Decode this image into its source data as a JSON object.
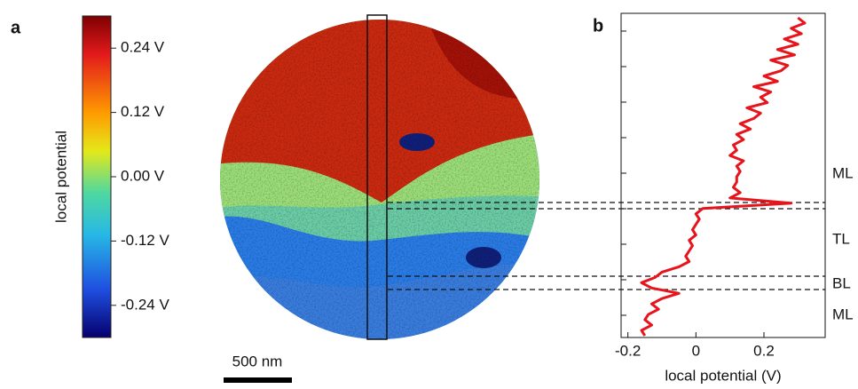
{
  "panels": {
    "a": "a",
    "b": "b"
  },
  "colorbar": {
    "label": "local potential",
    "ylim": [
      -0.3,
      0.3
    ],
    "yticks": [
      {
        "value": 0.24,
        "label": "0.24 V"
      },
      {
        "value": 0.12,
        "label": "0.12 V"
      },
      {
        "value": 0,
        "label": "0.00 V"
      },
      {
        "value": -0.12,
        "label": "-0.12 V"
      },
      {
        "value": -0.24,
        "label": "-0.24 V"
      }
    ]
  },
  "scale_bar": "500 nm",
  "chart_data": {
    "type": "line",
    "xlabel": "local potential (V)",
    "color": "#e8141c",
    "xlim": [
      -0.22,
      0.38
    ],
    "xticks": [
      -0.2,
      0,
      0.2
    ],
    "values": [
      0.3,
      0.32,
      0.28,
      0.31,
      0.26,
      0.3,
      0.24,
      0.29,
      0.22,
      0.27,
      0.25,
      0.2,
      0.24,
      0.17,
      0.22,
      0.19,
      0.21,
      0.15,
      0.19,
      0.17,
      0.13,
      0.16,
      0.12,
      0.14,
      0.11,
      0.12,
      0.1,
      0.14,
      0.12,
      0.13,
      0.12,
      0.12,
      0.11,
      0.13,
      0.1,
      0.28,
      0.02,
      0.0,
      0.01,
      0.0,
      -0.01,
      0.0,
      -0.02,
      -0.01,
      -0.02,
      -0.03,
      -0.02,
      -0.05,
      -0.1,
      -0.12,
      -0.16,
      -0.13,
      -0.05,
      -0.1,
      -0.13,
      -0.11,
      -0.14,
      -0.15,
      -0.13,
      -0.16,
      -0.15
    ],
    "region_labels": [
      "ML",
      "TL",
      "BL",
      "ML"
    ]
  }
}
